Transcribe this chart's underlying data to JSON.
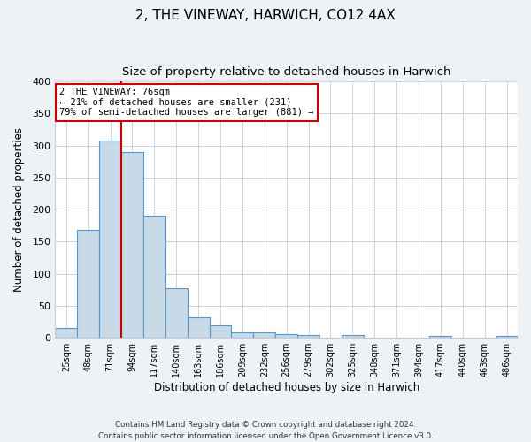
{
  "title": "2, THE VINEWAY, HARWICH, CO12 4AX",
  "subtitle": "Size of property relative to detached houses in Harwich",
  "xlabel": "Distribution of detached houses by size in Harwich",
  "ylabel": "Number of detached properties",
  "footer_line1": "Contains HM Land Registry data © Crown copyright and database right 2024.",
  "footer_line2": "Contains public sector information licensed under the Open Government Licence v3.0.",
  "bar_labels": [
    "25sqm",
    "48sqm",
    "71sqm",
    "94sqm",
    "117sqm",
    "140sqm",
    "163sqm",
    "186sqm",
    "209sqm",
    "232sqm",
    "256sqm",
    "279sqm",
    "302sqm",
    "325sqm",
    "348sqm",
    "371sqm",
    "394sqm",
    "417sqm",
    "440sqm",
    "463sqm",
    "486sqm"
  ],
  "bar_values": [
    15,
    168,
    307,
    290,
    191,
    78,
    32,
    20,
    9,
    8,
    6,
    5,
    0,
    4,
    0,
    0,
    0,
    3,
    0,
    0,
    3
  ],
  "bar_color": "#c8d9e8",
  "bar_edge_color": "#5599cc",
  "annotation_title": "2 THE VINEWAY: 76sqm",
  "annotation_line1": "← 21% of detached houses are smaller (231)",
  "annotation_line2": "79% of semi-detached houses are larger (881) →",
  "annotation_box_color": "#ffffff",
  "annotation_box_edge": "#cc0000",
  "red_line_color": "#cc0000",
  "ylim": [
    0,
    400
  ],
  "yticks": [
    0,
    50,
    100,
    150,
    200,
    250,
    300,
    350,
    400
  ],
  "background_color": "#eef2f7",
  "plot_background_color": "#ffffff",
  "grid_color": "#c5cdd8",
  "title_fontsize": 11,
  "subtitle_fontsize": 9.5,
  "red_line_index": 2.5
}
